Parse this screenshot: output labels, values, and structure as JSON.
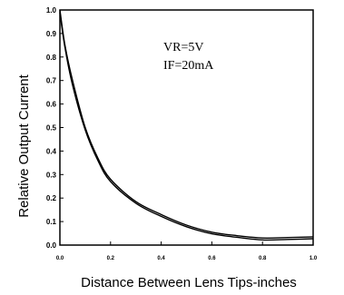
{
  "chart_data": {
    "type": "line",
    "xlabel": "Distance Between Lens  Tips-inches",
    "ylabel": "Relative Output Current",
    "xlim": [
      0,
      1.0
    ],
    "ylim": [
      0,
      1.0
    ],
    "x_ticks": [
      "0.0",
      "0.2",
      "0.4",
      "0.6",
      "0.8",
      "1.0"
    ],
    "x_tick_values": [
      0,
      0.2,
      0.4,
      0.6,
      0.8,
      1.0
    ],
    "y_ticks": [
      "0.0",
      "0.1",
      "0.2",
      "0.3",
      "0.4",
      "0.5",
      "0.6",
      "0.7",
      "0.8",
      "0.9",
      "1.0"
    ],
    "y_tick_values": [
      0,
      0.1,
      0.2,
      0.3,
      0.4,
      0.5,
      0.6,
      0.7,
      0.8,
      0.9,
      1.0
    ],
    "annotations": [
      "VR=5V",
      "IF=20mA"
    ],
    "grid": false,
    "series": [
      {
        "x": [
          0,
          0.02,
          0.05,
          0.1,
          0.15,
          0.2,
          0.3,
          0.4,
          0.5,
          0.6,
          0.7,
          0.8,
          0.9,
          1.0
        ],
        "y": [
          1.0,
          0.85,
          0.7,
          0.5,
          0.37,
          0.28,
          0.185,
          0.13,
          0.085,
          0.055,
          0.04,
          0.03,
          0.032,
          0.035
        ]
      },
      {
        "x": [
          0,
          0.02,
          0.05,
          0.1,
          0.15,
          0.2,
          0.3,
          0.4,
          0.5,
          0.6,
          0.7,
          0.8,
          0.9,
          1.0
        ],
        "y": [
          0.99,
          0.84,
          0.68,
          0.49,
          0.36,
          0.27,
          0.178,
          0.122,
          0.078,
          0.048,
          0.033,
          0.022,
          0.024,
          0.027
        ]
      }
    ]
  }
}
